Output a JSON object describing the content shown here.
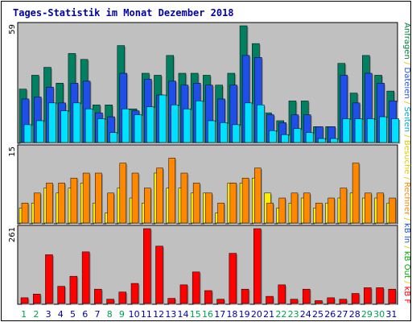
{
  "chart_data": {
    "type": "bar",
    "title": "Tages-Statistik im Monat Dezember 2018",
    "days": [
      "1",
      "2",
      "3",
      "4",
      "5",
      "6",
      "7",
      "8",
      "9",
      "10",
      "11",
      "12",
      "13",
      "14",
      "15",
      "16",
      "17",
      "18",
      "19",
      "20",
      "21",
      "22",
      "23",
      "24",
      "25",
      "26",
      "27",
      "28",
      "29",
      "30",
      "31"
    ],
    "weekend_days": [
      "1",
      "2",
      "8",
      "9",
      "15",
      "16",
      "22",
      "23",
      "29",
      "30"
    ],
    "legend": [
      {
        "text": "Anfragen",
        "color": "#008040"
      },
      {
        "text": "/",
        "color": "#ddcc00"
      },
      {
        "text": "Dateien",
        "color": "#2255dd"
      },
      {
        "text": "/",
        "color": "#ddcc00"
      },
      {
        "text": "Seiten",
        "color": "#00aacc"
      },
      {
        "text": "/",
        "color": "#ddcc00"
      },
      {
        "text": "Besuche",
        "color": "#ddcc00"
      },
      {
        "text": "/",
        "color": "#ddcc00"
      },
      {
        "text": "Rechner",
        "color": "#ff8800"
      },
      {
        "text": "/",
        "color": "#ddcc00"
      },
      {
        "text": "kB In",
        "color": "#2255dd"
      },
      {
        "text": "/",
        "color": "#ddcc00"
      },
      {
        "text": "kB Out",
        "color": "#00aa00"
      },
      {
        "text": "/",
        "color": "#ddcc00"
      },
      {
        "text": "kB F",
        "color": "#ff0000"
      }
    ],
    "panels": [
      {
        "max_label": "59",
        "ymax": 59,
        "series": [
          {
            "name": "Anfragen",
            "color": "#008060",
            "values": [
              27,
              34,
              38,
              30,
              45,
              42,
              19,
              19,
              49,
              17,
              35,
              34,
              44,
              35,
              35,
              34,
              29,
              35,
              59,
              50,
              15,
              11,
              21,
              21,
              8,
              8,
              40,
              25,
              44,
              34,
              26
            ]
          },
          {
            "name": "Dateien",
            "color": "#1f4ee8",
            "values": [
              22,
              23,
              28,
              20,
              30,
              31,
              15,
              13,
              35,
              16,
              32,
              24,
              31,
              29,
              30,
              29,
              22,
              29,
              44,
              43,
              14,
              10,
              14,
              14,
              8,
              8,
              34,
              20,
              35,
              30,
              21
            ]
          },
          {
            "name": "Seiten",
            "color": "#00e0ff",
            "values": [
              9,
              11,
              20,
              16,
              20,
              17,
              12,
              5,
              17,
              14,
              18,
              24,
              19,
              17,
              21,
              11,
              10,
              9,
              20,
              19,
              6,
              4,
              7,
              5,
              2,
              2,
              12,
              12,
              12,
              13,
              12
            ]
          }
        ]
      },
      {
        "max_label": "15",
        "ymax": 15,
        "series": [
          {
            "name": "Besuche",
            "color": "#ffee00",
            "values": [
              3,
              4,
              7,
              6,
              7,
              8,
              4,
              2,
              7,
              5,
              4,
              10,
              7,
              7,
              6,
              6,
              2,
              8,
              8,
              9,
              6,
              3,
              4,
              5,
              3,
              4,
              5,
              6,
              5,
              5,
              4
            ]
          },
          {
            "name": "Rechner",
            "color": "#ff8800",
            "values": [
              4,
              6,
              8,
              8,
              9,
              10,
              10,
              6,
              12,
              10,
              7,
              11,
              13,
              10,
              8,
              6,
              4,
              8,
              9,
              11,
              4,
              5,
              6,
              6,
              4,
              5,
              7,
              12,
              6,
              6,
              5
            ]
          }
        ]
      },
      {
        "max_label": "261",
        "ymax": 261,
        "series": [
          {
            "name": "kB F",
            "color": "#ff0000",
            "values": [
              20,
              33,
              170,
              60,
              95,
              180,
              50,
              15,
              40,
              70,
              261,
              200,
              18,
              65,
              110,
              45,
              15,
              175,
              50,
              261,
              25,
              65,
              15,
              50,
              10,
              20,
              15,
              35,
              55,
              55,
              50
            ]
          }
        ]
      }
    ]
  }
}
